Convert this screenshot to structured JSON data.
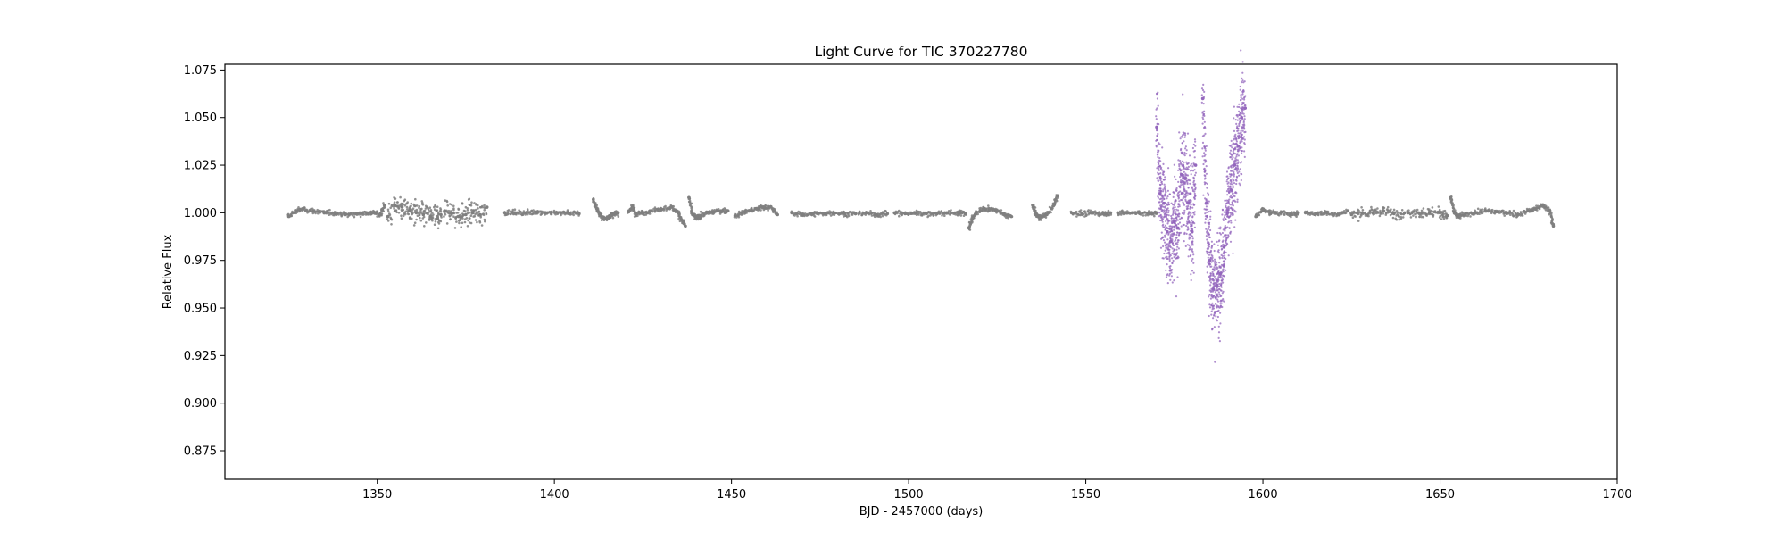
{
  "chart_data": {
    "type": "scatter",
    "title": "Light Curve for TIC 370227780",
    "xlabel": "BJD - 2457000 (days)",
    "ylabel": "Relative Flux",
    "xlim": [
      1307,
      1700
    ],
    "ylim": [
      0.86,
      1.078
    ],
    "xticks": [
      1350,
      1400,
      1450,
      1500,
      1550,
      1600,
      1650,
      1700
    ],
    "yticks": [
      0.875,
      0.9,
      0.925,
      0.95,
      0.975,
      1.0,
      1.025,
      1.05,
      1.075
    ],
    "xtick_labels": [
      "1350",
      "1400",
      "1450",
      "1500",
      "1550",
      "1600",
      "1650",
      "1700"
    ],
    "ytick_labels": [
      "0.875",
      "0.900",
      "0.925",
      "0.950",
      "0.975",
      "1.000",
      "1.025",
      "1.050",
      "1.075"
    ],
    "grid": false,
    "series": [
      {
        "color": "#7f7f7f",
        "segments": [
          {
            "x": [
              1325,
              1327,
              1329,
              1332,
              1335,
              1338,
              1341,
              1344,
              1347,
              1349,
              1351,
              1352
            ],
            "y": [
              0.998,
              1.001,
              1.002,
              1.001,
              1.0,
              1.0,
              0.999,
              0.9995,
              1.0,
              1.0,
              0.999,
              1.004
            ]
          },
          {
            "x": [
              1353,
              1355,
              1357,
              1359,
              1361,
              1363,
              1365,
              1367,
              1368
            ],
            "y": [
              0.998,
              1.004,
              1.003,
              1.001,
              1.0,
              0.999,
              0.998,
              0.997,
              0.999
            ]
          },
          {
            "x": [
              1369,
              1371,
              1373,
              1375,
              1377,
              1379,
              1381
            ],
            "y": [
              1.001,
              1.0,
              0.998,
              0.999,
              1.0,
              0.999,
              1.003
            ]
          },
          {
            "x": [
              1386,
              1389,
              1392,
              1395,
              1398,
              1401,
              1404,
              1407
            ],
            "y": [
              1.0,
              1.0,
              1.0,
              1.0005,
              1.0,
              1.0,
              1.0,
              0.9995
            ]
          },
          {
            "x": [
              1411,
              1412,
              1413,
              1414,
              1415,
              1416,
              1417,
              1418
            ],
            "y": [
              1.007,
              1.002,
              0.9985,
              0.997,
              0.9975,
              0.9985,
              0.9995,
              1.0
            ]
          },
          {
            "x": [
              1421,
              1422,
              1423,
              1425,
              1427,
              1430,
              1433,
              1435,
              1436,
              1437
            ],
            "y": [
              1.0005,
              1.003,
              0.999,
              1.0,
              1.001,
              1.002,
              1.003,
              1.0,
              0.996,
              0.993
            ]
          },
          {
            "x": [
              1438,
              1439,
              1440,
              1441,
              1443,
              1445,
              1447,
              1449
            ],
            "y": [
              1.008,
              0.999,
              0.9975,
              0.998,
              1.0,
              1.0005,
              1.001,
              1.001
            ]
          },
          {
            "x": [
              1451,
              1453,
              1455,
              1457,
              1459,
              1461,
              1463
            ],
            "y": [
              0.9985,
              1.0,
              1.001,
              1.002,
              1.003,
              1.003,
              0.999
            ]
          },
          {
            "x": [
              1467,
              1470,
              1473,
              1476,
              1479,
              1482,
              1485,
              1488,
              1491,
              1494
            ],
            "y": [
              1.0,
              0.999,
              0.9995,
              0.9995,
              1.0,
              0.9995,
              0.9995,
              1.0,
              0.999,
              0.9995
            ]
          },
          {
            "x": [
              1496,
              1499,
              1502,
              1505,
              1508,
              1511,
              1514,
              1516
            ],
            "y": [
              1.0,
              0.9995,
              1.0,
              0.9995,
              0.9995,
              1.0,
              1.0,
              0.9995
            ]
          },
          {
            "x": [
              1517,
              1518,
              1519,
              1521,
              1523,
              1525,
              1527,
              1529
            ],
            "y": [
              0.992,
              0.997,
              1.0,
              1.002,
              1.002,
              1.001,
              0.999,
              0.998
            ]
          },
          {
            "x": [
              1535,
              1536,
              1537,
              1539,
              1541,
              1542
            ],
            "y": [
              1.004,
              0.999,
              0.9975,
              0.999,
              1.004,
              1.009
            ]
          },
          {
            "x": [
              1546,
              1549,
              1552,
              1555,
              1557
            ],
            "y": [
              1.0,
              0.9995,
              1.0,
              0.9995,
              1.0
            ]
          },
          {
            "x": [
              1559,
              1562,
              1565,
              1568,
              1570
            ],
            "y": [
              1.0,
              1.0,
              1.0,
              0.9995,
              1.0
            ]
          },
          {
            "x": [
              1598,
              1600,
              1602,
              1605,
              1608,
              1610
            ],
            "y": [
              0.998,
              1.002,
              1.0,
              1.0,
              0.999,
              1.0
            ]
          },
          {
            "x": [
              1612,
              1615,
              1618,
              1621,
              1624
            ],
            "y": [
              1.0,
              0.9995,
              1.0,
              0.999,
              1.001
            ]
          },
          {
            "x": [
              1625,
              1628,
              1631,
              1634,
              1637,
              1640
            ],
            "y": [
              0.999,
              1.0,
              1.0,
              1.001,
              0.9995,
              1.0
            ]
          },
          {
            "x": [
              1641,
              1644,
              1647,
              1650,
              1652
            ],
            "y": [
              1.0,
              1.0,
              1.0,
              1.0,
              0.9985
            ]
          },
          {
            "x": [
              1653,
              1654,
              1655,
              1657,
              1660,
              1663,
              1666,
              1669,
              1672,
              1675,
              1677,
              1679,
              1681,
              1682
            ],
            "y": [
              1.008,
              1.0,
              0.998,
              0.999,
              1.0,
              1.001,
              1.0005,
              1.0,
              0.999,
              1.001,
              1.002,
              1.004,
              1.001,
              0.993
            ]
          }
        ]
      },
      {
        "color": "#9467bd",
        "segments": [
          {
            "x": [
              1570,
              1571,
              1572,
              1573,
              1574,
              1575,
              1576,
              1577,
              1578,
              1579,
              1580,
              1581
            ],
            "y": [
              1.045,
              1.01,
              1.005,
              0.99,
              0.985,
              0.995,
              0.992,
              1.02,
              1.018,
              1.005,
              0.99,
              1.025
            ]
          },
          {
            "x": [
              1583,
              1584,
              1585,
              1586,
              1587,
              1588,
              1589,
              1590,
              1591,
              1592,
              1593,
              1594,
              1595
            ],
            "y": [
              1.06,
              1.005,
              0.975,
              0.96,
              0.962,
              0.968,
              0.982,
              1.0,
              1.012,
              1.025,
              1.035,
              1.05,
              1.055
            ]
          }
        ]
      }
    ]
  }
}
